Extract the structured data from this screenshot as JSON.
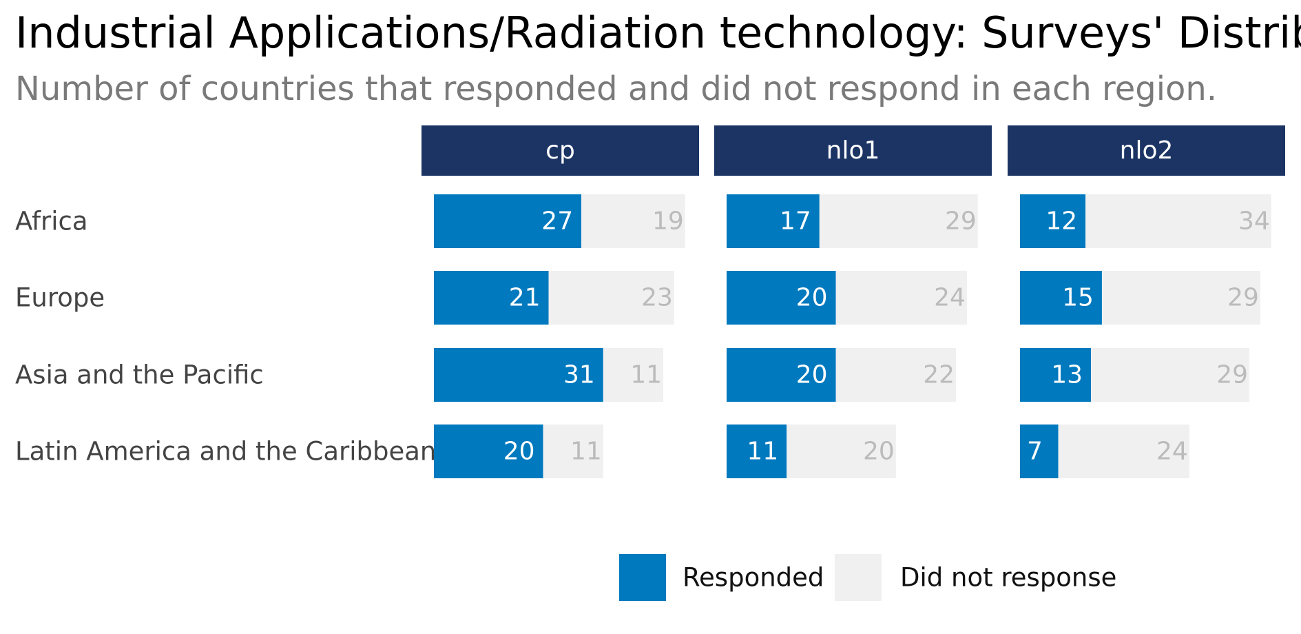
{
  "chart_data": {
    "type": "bar",
    "title": "Industrial Applications/Radiation technology: Surveys' Distrib",
    "subtitle": "Number of countries that responded and did not respond in each region.",
    "categories": [
      "Africa",
      "Europe",
      "Asia and the Pacific",
      "Latin America and the Caribbean"
    ],
    "panels": [
      {
        "name": "cp",
        "responded": [
          27,
          21,
          31,
          20
        ],
        "did_not_respond": [
          19,
          23,
          11,
          11
        ]
      },
      {
        "name": "nlo1",
        "responded": [
          17,
          20,
          20,
          11
        ],
        "did_not_respond": [
          29,
          24,
          22,
          20
        ]
      },
      {
        "name": "nlo2",
        "responded": [
          12,
          15,
          13,
          7
        ],
        "did_not_respond": [
          34,
          29,
          29,
          24
        ]
      }
    ],
    "stacked": true,
    "legend": {
      "placement": "bottom",
      "items": [
        {
          "label": "Responded",
          "color": "#0079be"
        },
        {
          "label": "Did not response",
          "color": "#f0f0f0"
        }
      ]
    },
    "colors": {
      "responded": "#0079be",
      "not_responded": "#f0f0f0",
      "panel_header": "#1b3464"
    }
  }
}
